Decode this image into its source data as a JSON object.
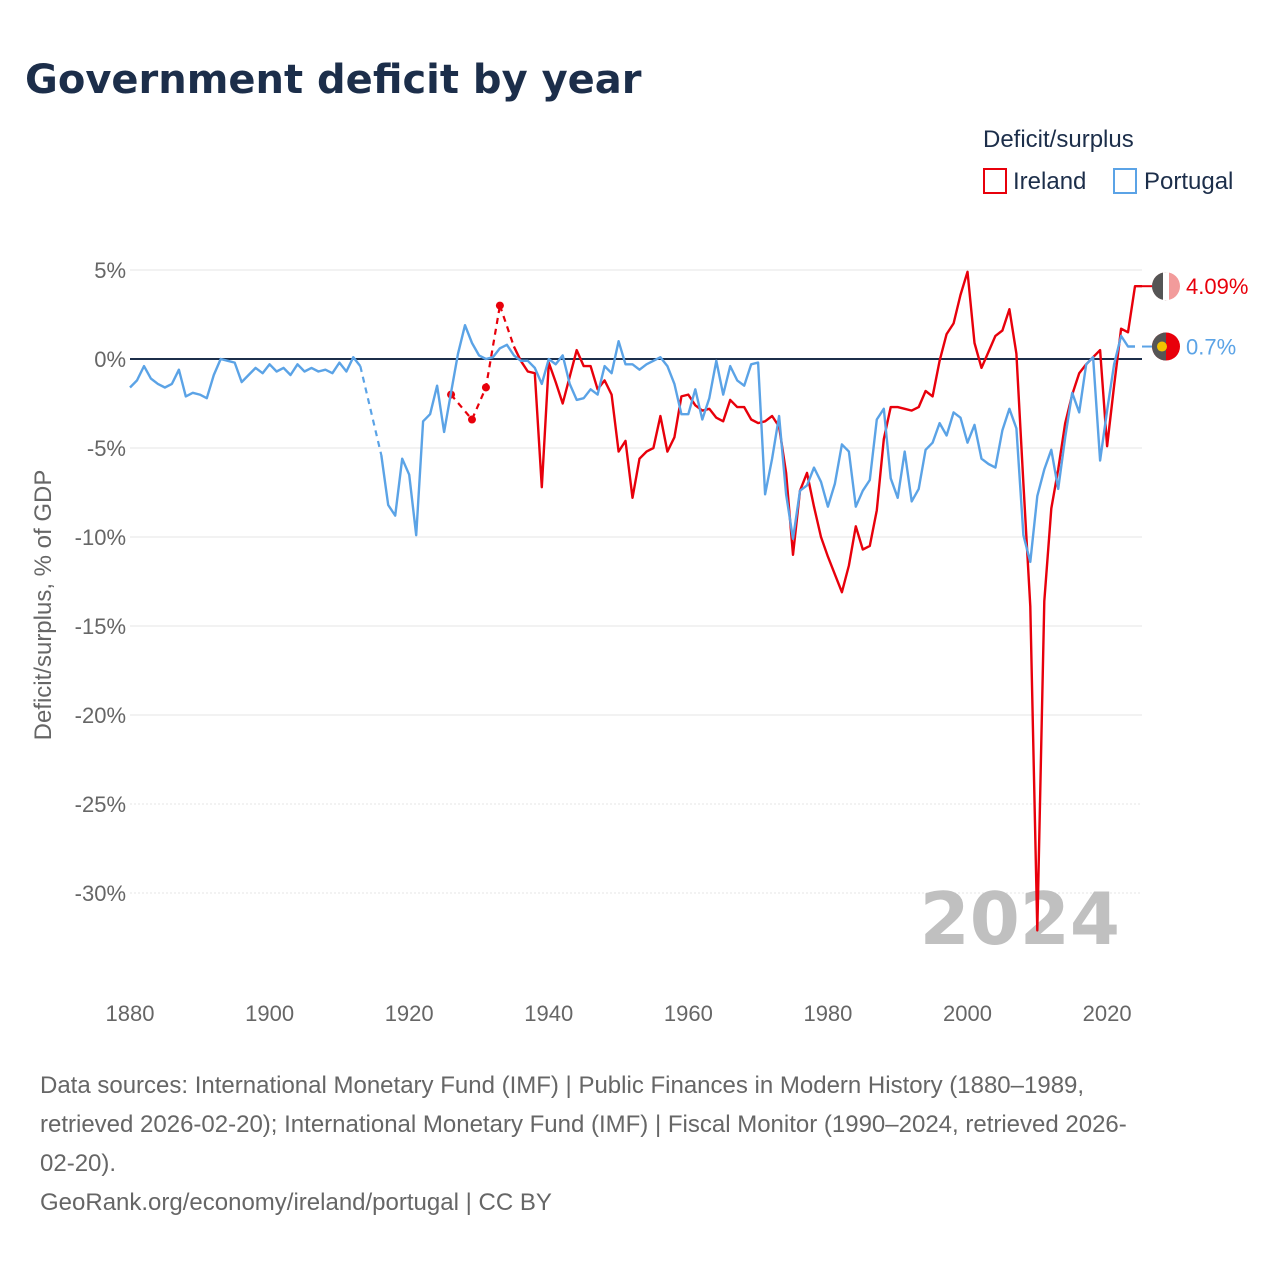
{
  "title": "Government deficit by year",
  "legend": {
    "title": "Deficit/surplus",
    "items": [
      {
        "label": "Ireland",
        "color": "#e8000b"
      },
      {
        "label": "Portugal",
        "color": "#5ba3e6"
      }
    ]
  },
  "year_watermark": "2024",
  "source_lines": [
    "Data sources: International Monetary Fund (IMF) | Public Finances in Modern History (1880–1989,",
    "retrieved 2026-02-20); International Monetary Fund (IMF) | Fiscal Monitor (1990–2024, retrieved 2026-",
    "02-20).",
    "GeoRank.org/economy/ireland/portugal | CC BY"
  ],
  "chart_data": {
    "type": "line",
    "title": "Government deficit by year",
    "ylabel": "Deficit/surplus, % of GDP",
    "xlabel": "",
    "xlim": [
      1880,
      2025
    ],
    "ylim": [
      -35,
      6
    ],
    "x_ticks": [
      "1880",
      "1900",
      "1920",
      "1940",
      "1960",
      "1980",
      "2000",
      "2020"
    ],
    "x_tick_values": [
      1880,
      1900,
      1920,
      1940,
      1960,
      1980,
      2000,
      2020
    ],
    "y_ticks": [
      "5%",
      "0%",
      "-5%",
      "-10%",
      "-15%",
      "-20%",
      "-25%",
      "-30%"
    ],
    "y_tick_values": [
      5,
      0,
      -5,
      -10,
      -15,
      -20,
      -25,
      -30
    ],
    "zero_line": true,
    "grid": true,
    "end_labels": [
      {
        "series": "Ireland",
        "text": "4.09%",
        "value": 4.09
      },
      {
        "series": "Portugal",
        "text": "0.7%",
        "value": 0.7
      }
    ],
    "series": [
      {
        "name": "Ireland",
        "color": "#e8000b",
        "dashed_points": [
          [
            1926,
            -2.0
          ],
          [
            1929,
            -3.4
          ],
          [
            1931,
            -1.6
          ],
          [
            1933,
            3.0
          ]
        ],
        "dashed_bridge": [
          [
            1933,
            3.0
          ],
          [
            1935,
            0.7
          ]
        ],
        "points": [
          [
            1935,
            0.7
          ],
          [
            1936,
            -0.1
          ],
          [
            1937,
            -0.7
          ],
          [
            1938,
            -0.8
          ],
          [
            1939,
            -7.2
          ],
          [
            1940,
            -0.2
          ],
          [
            1941,
            -1.3
          ],
          [
            1942,
            -2.5
          ],
          [
            1943,
            -1.0
          ],
          [
            1944,
            0.5
          ],
          [
            1945,
            -0.4
          ],
          [
            1946,
            -0.4
          ],
          [
            1947,
            -1.7
          ],
          [
            1948,
            -1.2
          ],
          [
            1949,
            -2.0
          ],
          [
            1950,
            -5.2
          ],
          [
            1951,
            -4.6
          ],
          [
            1952,
            -7.8
          ],
          [
            1953,
            -5.6
          ],
          [
            1954,
            -5.2
          ],
          [
            1955,
            -5.0
          ],
          [
            1956,
            -3.2
          ],
          [
            1957,
            -5.2
          ],
          [
            1958,
            -4.4
          ],
          [
            1959,
            -2.1
          ],
          [
            1960,
            -2.0
          ],
          [
            1961,
            -2.6
          ],
          [
            1962,
            -2.9
          ],
          [
            1963,
            -2.8
          ],
          [
            1964,
            -3.3
          ],
          [
            1965,
            -3.5
          ],
          [
            1966,
            -2.3
          ],
          [
            1967,
            -2.7
          ],
          [
            1968,
            -2.7
          ],
          [
            1969,
            -3.4
          ],
          [
            1970,
            -3.6
          ],
          [
            1971,
            -3.5
          ],
          [
            1972,
            -3.2
          ],
          [
            1973,
            -3.8
          ],
          [
            1974,
            -6.4
          ],
          [
            1975,
            -11.0
          ],
          [
            1976,
            -7.4
          ],
          [
            1977,
            -6.4
          ],
          [
            1978,
            -8.3
          ],
          [
            1979,
            -10.0
          ],
          [
            1980,
            -11.1
          ],
          [
            1981,
            -12.1
          ],
          [
            1982,
            -13.1
          ],
          [
            1983,
            -11.6
          ],
          [
            1984,
            -9.4
          ],
          [
            1985,
            -10.7
          ],
          [
            1986,
            -10.5
          ],
          [
            1987,
            -8.5
          ],
          [
            1988,
            -4.5
          ],
          [
            1989,
            -2.7
          ],
          [
            1990,
            -2.7
          ],
          [
            1991,
            -2.8
          ],
          [
            1992,
            -2.9
          ],
          [
            1993,
            -2.7
          ],
          [
            1994,
            -1.8
          ],
          [
            1995,
            -2.1
          ],
          [
            1996,
            -0.1
          ],
          [
            1997,
            1.4
          ],
          [
            1998,
            2.0
          ],
          [
            1999,
            3.6
          ],
          [
            2000,
            4.9
          ],
          [
            2001,
            0.9
          ],
          [
            2002,
            -0.5
          ],
          [
            2003,
            0.4
          ],
          [
            2004,
            1.3
          ],
          [
            2005,
            1.6
          ],
          [
            2006,
            2.8
          ],
          [
            2007,
            0.3
          ],
          [
            2008,
            -7.0
          ],
          [
            2009,
            -13.9
          ],
          [
            2010,
            -32.1
          ],
          [
            2011,
            -13.6
          ],
          [
            2012,
            -8.4
          ],
          [
            2013,
            -6.2
          ],
          [
            2014,
            -3.6
          ],
          [
            2015,
            -2.0
          ],
          [
            2016,
            -0.8
          ],
          [
            2017,
            -0.3
          ],
          [
            2018,
            0.1
          ],
          [
            2019,
            0.5
          ],
          [
            2020,
            -4.9
          ],
          [
            2021,
            -1.5
          ],
          [
            2022,
            1.7
          ],
          [
            2023,
            1.5
          ],
          [
            2024,
            4.09
          ],
          [
            2025,
            4.09
          ]
        ]
      },
      {
        "name": "Portugal",
        "color": "#5ba3e6",
        "points": [
          [
            1880,
            -1.6
          ],
          [
            1881,
            -1.2
          ],
          [
            1882,
            -0.4
          ],
          [
            1883,
            -1.1
          ],
          [
            1884,
            -1.4
          ],
          [
            1885,
            -1.6
          ],
          [
            1886,
            -1.4
          ],
          [
            1887,
            -0.6
          ],
          [
            1888,
            -2.1
          ],
          [
            1889,
            -1.9
          ],
          [
            1890,
            -2.0
          ],
          [
            1891,
            -2.2
          ],
          [
            1892,
            -0.9
          ],
          [
            1893,
            0.0
          ],
          [
            1894,
            -0.1
          ],
          [
            1895,
            -0.2
          ],
          [
            1896,
            -1.3
          ],
          [
            1897,
            -0.9
          ],
          [
            1898,
            -0.5
          ],
          [
            1899,
            -0.8
          ],
          [
            1900,
            -0.3
          ],
          [
            1901,
            -0.7
          ],
          [
            1902,
            -0.5
          ],
          [
            1903,
            -0.9
          ],
          [
            1904,
            -0.3
          ],
          [
            1905,
            -0.7
          ],
          [
            1906,
            -0.5
          ],
          [
            1907,
            -0.7
          ],
          [
            1908,
            -0.6
          ],
          [
            1909,
            -0.8
          ],
          [
            1910,
            -0.2
          ],
          [
            1911,
            -0.7
          ],
          [
            1912,
            0.1
          ],
          [
            1913,
            -0.4
          ]
        ],
        "dashed_bridge": [
          [
            1913,
            -0.4
          ],
          [
            1916,
            -5.4
          ]
        ],
        "points2": [
          [
            1916,
            -5.4
          ],
          [
            1917,
            -8.2
          ],
          [
            1918,
            -8.8
          ],
          [
            1919,
            -5.6
          ],
          [
            1920,
            -6.5
          ],
          [
            1921,
            -9.9
          ],
          [
            1922,
            -3.5
          ],
          [
            1923,
            -3.1
          ],
          [
            1924,
            -1.5
          ],
          [
            1925,
            -4.1
          ],
          [
            1926,
            -1.9
          ],
          [
            1927,
            0.3
          ],
          [
            1928,
            1.9
          ],
          [
            1929,
            0.9
          ],
          [
            1930,
            0.2
          ],
          [
            1931,
            0.0
          ],
          [
            1932,
            0.1
          ],
          [
            1933,
            0.6
          ],
          [
            1934,
            0.8
          ],
          [
            1935,
            0.2
          ],
          [
            1936,
            -0.1
          ],
          [
            1937,
            -0.1
          ],
          [
            1938,
            -0.5
          ],
          [
            1939,
            -1.4
          ],
          [
            1940,
            0.0
          ],
          [
            1941,
            -0.3
          ],
          [
            1942,
            0.2
          ],
          [
            1943,
            -1.4
          ],
          [
            1944,
            -2.3
          ],
          [
            1945,
            -2.2
          ],
          [
            1946,
            -1.7
          ],
          [
            1947,
            -2.0
          ],
          [
            1948,
            -0.4
          ],
          [
            1949,
            -0.8
          ],
          [
            1950,
            1.0
          ],
          [
            1951,
            -0.3
          ],
          [
            1952,
            -0.3
          ],
          [
            1953,
            -0.6
          ],
          [
            1954,
            -0.3
          ],
          [
            1955,
            -0.1
          ],
          [
            1956,
            0.1
          ],
          [
            1957,
            -0.4
          ],
          [
            1958,
            -1.4
          ],
          [
            1959,
            -3.1
          ],
          [
            1960,
            -3.1
          ],
          [
            1961,
            -1.7
          ],
          [
            1962,
            -3.4
          ],
          [
            1963,
            -2.2
          ],
          [
            1964,
            -0.1
          ],
          [
            1965,
            -2.0
          ],
          [
            1966,
            -0.4
          ],
          [
            1967,
            -1.2
          ],
          [
            1968,
            -1.5
          ],
          [
            1969,
            -0.3
          ],
          [
            1970,
            -0.2
          ],
          [
            1971,
            -7.6
          ],
          [
            1972,
            -5.6
          ],
          [
            1973,
            -3.2
          ],
          [
            1974,
            -7.6
          ],
          [
            1975,
            -10.1
          ],
          [
            1976,
            -7.4
          ],
          [
            1977,
            -7.1
          ],
          [
            1978,
            -6.1
          ],
          [
            1979,
            -6.9
          ],
          [
            1980,
            -8.3
          ],
          [
            1981,
            -7.0
          ],
          [
            1982,
            -4.8
          ],
          [
            1983,
            -5.2
          ],
          [
            1984,
            -8.3
          ],
          [
            1985,
            -7.4
          ],
          [
            1986,
            -6.8
          ],
          [
            1987,
            -3.4
          ],
          [
            1988,
            -2.8
          ],
          [
            1989,
            -6.7
          ],
          [
            1990,
            -7.8
          ],
          [
            1991,
            -5.2
          ],
          [
            1992,
            -8.0
          ],
          [
            1993,
            -7.3
          ],
          [
            1994,
            -5.1
          ],
          [
            1995,
            -4.7
          ],
          [
            1996,
            -3.6
          ],
          [
            1997,
            -4.3
          ],
          [
            1998,
            -3.0
          ],
          [
            1999,
            -3.3
          ],
          [
            2000,
            -4.7
          ],
          [
            2001,
            -3.7
          ],
          [
            2002,
            -5.6
          ],
          [
            2003,
            -5.9
          ],
          [
            2004,
            -6.1
          ],
          [
            2005,
            -4.0
          ],
          [
            2006,
            -2.8
          ],
          [
            2007,
            -3.9
          ],
          [
            2008,
            -9.9
          ],
          [
            2009,
            -11.4
          ],
          [
            2010,
            -7.7
          ],
          [
            2011,
            -6.2
          ],
          [
            2012,
            -5.1
          ],
          [
            2013,
            -7.3
          ],
          [
            2014,
            -4.4
          ],
          [
            2015,
            -1.9
          ],
          [
            2016,
            -3.0
          ],
          [
            2017,
            -0.3
          ],
          [
            2018,
            0.1
          ],
          [
            2019,
            -5.7
          ],
          [
            2020,
            -2.9
          ],
          [
            2021,
            -0.3
          ],
          [
            2022,
            1.3
          ],
          [
            2023,
            0.7
          ],
          [
            2024,
            0.7
          ]
        ]
      }
    ]
  }
}
